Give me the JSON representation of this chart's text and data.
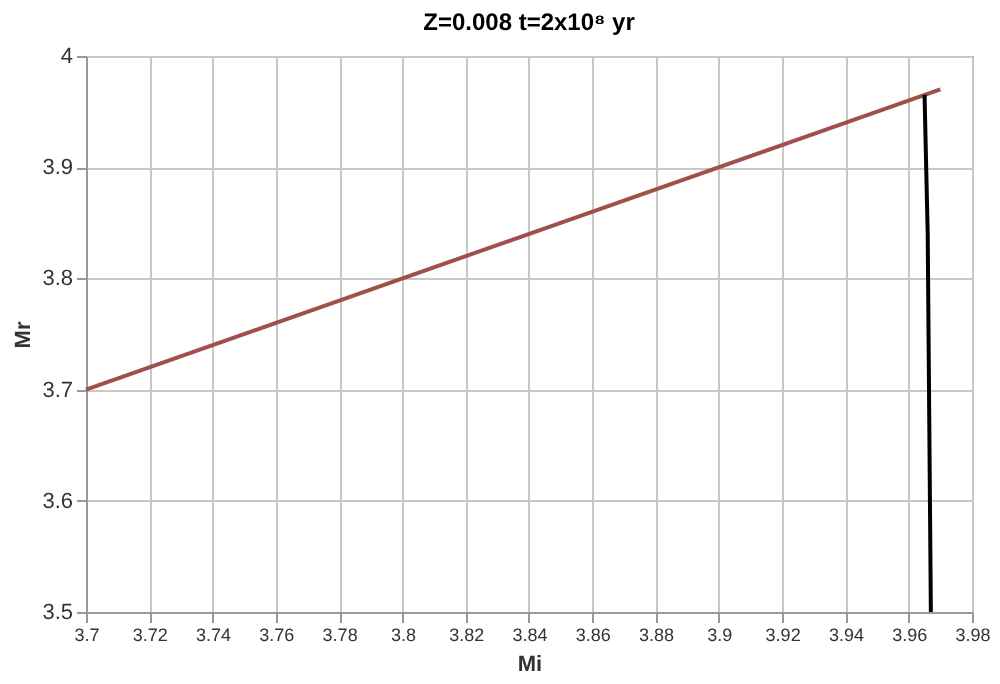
{
  "chart_data": {
    "type": "line",
    "title": "Z=0.008    t=2x10⁸ yr",
    "xlabel": "Mi",
    "ylabel": "Mr",
    "series": [
      {
        "color": "#a0504a",
        "x": [
          3.7,
          3.97
        ],
        "values": [
          3.7,
          3.97
        ]
      },
      {
        "color": "#000000",
        "x": [
          3.965,
          3.966,
          3.967
        ],
        "values": [
          3.965,
          3.84,
          3.5
        ]
      }
    ],
    "xlim": [
      3.7,
      3.98
    ],
    "ylim": [
      3.5,
      4
    ],
    "xticks": [
      3.7,
      3.72,
      3.74,
      3.76,
      3.78,
      3.8,
      3.82,
      3.84,
      3.86,
      3.88,
      3.9,
      3.92,
      3.94,
      3.96,
      3.98
    ],
    "yticks": [
      3.5,
      3.6,
      3.7,
      3.8,
      3.9,
      4
    ],
    "grid": true,
    "marker": "none",
    "line_style": "solid"
  }
}
